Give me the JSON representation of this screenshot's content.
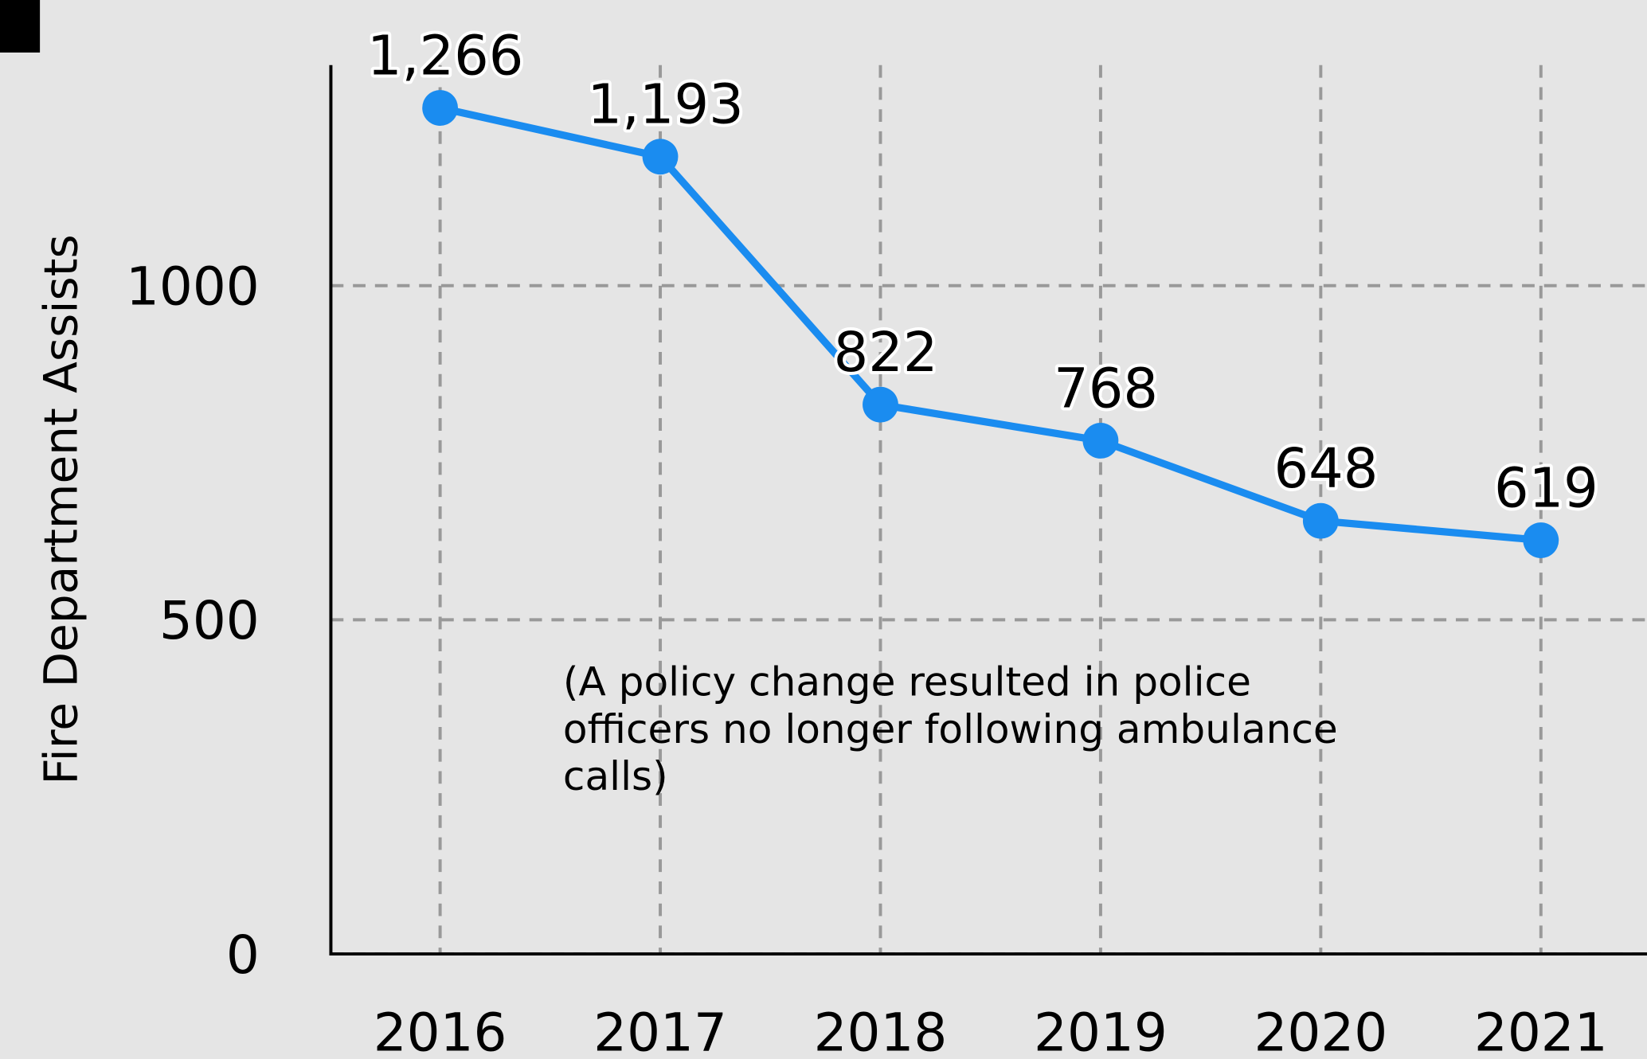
{
  "chart_data": {
    "type": "line",
    "y_label": "Fire Department Assists",
    "categories": [
      "2016",
      "2017",
      "2018",
      "2019",
      "2020",
      "2021"
    ],
    "series": [
      {
        "name": "Fire Department Assists",
        "color": "#1a8cf0",
        "values": [
          1266,
          1193,
          822,
          768,
          648,
          619
        ],
        "value_labels": [
          "1,266",
          "1,193",
          "822",
          "768",
          "648",
          "619"
        ]
      }
    ],
    "ylim": [
      0,
      1330
    ],
    "yticks": [
      0,
      500,
      1000
    ],
    "grid": true,
    "annotation": [
      "(A policy change resulted in police",
      "officers no longer following ambulance",
      "calls)"
    ]
  }
}
